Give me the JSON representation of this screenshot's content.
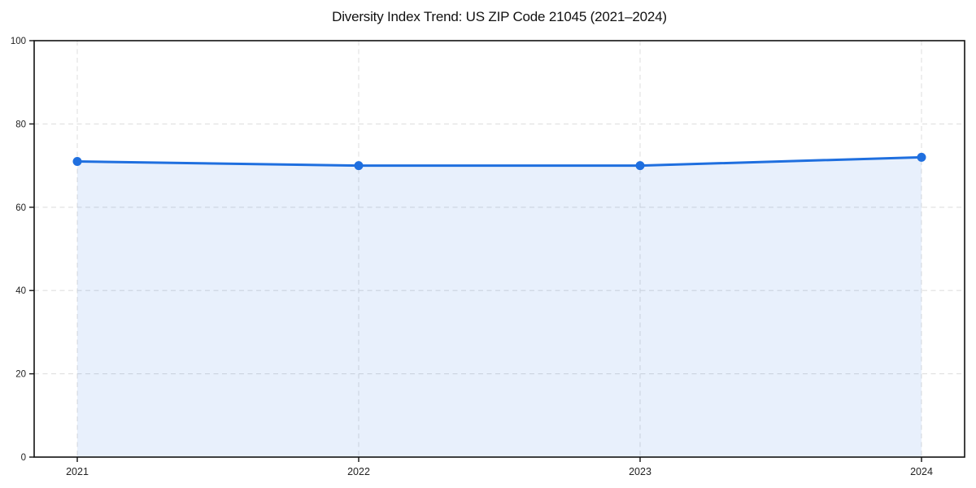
{
  "chart_data": {
    "type": "line",
    "title": "Diversity Index Trend: US ZIP Code 21045 (2021–2024)",
    "categories": [
      "2021",
      "2022",
      "2023",
      "2024"
    ],
    "series": [
      {
        "name": "Diversity Index",
        "values": [
          71,
          70,
          70,
          72
        ]
      }
    ],
    "xlabel": "",
    "ylabel": "",
    "ylim": [
      0,
      100
    ],
    "yticks": [
      0,
      20,
      40,
      60,
      80,
      100
    ],
    "grid": true,
    "grid_style": "dashed",
    "legend_position": "none",
    "area_fill": true,
    "marker": "circle",
    "colors": {
      "line": "#1f6fdf",
      "marker": "#1f6fdf",
      "area_fill": "rgba(31,111,223,0.10)",
      "grid": "#dcdcdc",
      "spine": "#111111",
      "tick_text": "#222222",
      "background": "#ffffff"
    }
  }
}
